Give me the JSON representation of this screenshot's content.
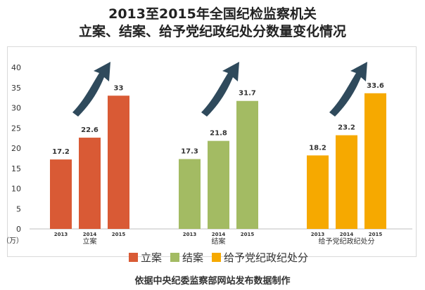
{
  "title_line1": "2013至2015年全国纪检监察机关",
  "title_line2": "立案、结案、给予党纪政纪处分数量变化情况",
  "source": "依据中央纪委监察部网站发布数据制作",
  "chart_data": {
    "type": "bar",
    "title": "2013至2015年全国纪检监察机关 立案、结案、给予党纪政纪处分数量变化情况",
    "ylabel": "（万）",
    "ylim": [
      0,
      40
    ],
    "yticks": [
      0,
      5,
      10,
      15,
      20,
      25,
      30,
      35,
      40
    ],
    "grid": false,
    "legend_position": "bottom",
    "years": [
      "2013",
      "2014",
      "2015"
    ],
    "groups": [
      {
        "name": "立案",
        "color": "#d95a35",
        "values": [
          17.2,
          22.6,
          33
        ],
        "labels": [
          "17.2",
          "22.6",
          "33"
        ]
      },
      {
        "name": "结案",
        "color": "#a3bb63",
        "values": [
          17.3,
          21.8,
          31.7
        ],
        "labels": [
          "17.3",
          "21.8",
          "31.7"
        ]
      },
      {
        "name": "给予党纪政纪处分",
        "color": "#f6a900",
        "values": [
          18.2,
          23.2,
          33.6
        ],
        "labels": [
          "18.2",
          "23.2",
          "33.6"
        ]
      }
    ]
  }
}
